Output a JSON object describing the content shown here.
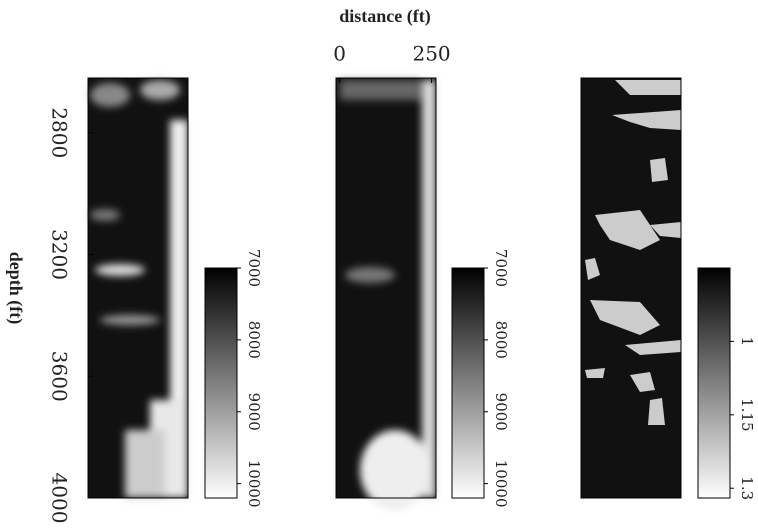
{
  "chart_data": {
    "type": "heatmap",
    "xlabel": "distance (ft)",
    "ylabel": "depth (ft)",
    "xlim": [
      -10,
      262
    ],
    "xticks": [
      0,
      250
    ],
    "ylim": [
      2620,
      4000
    ],
    "yticks": [
      2800,
      3200,
      3600,
      4000
    ],
    "colormap": [
      "#000000",
      "#ffffff"
    ],
    "panels": [
      {
        "clim": [
          7000,
          10200
        ],
        "cticks": [
          7000,
          8000,
          9000,
          10000
        ]
      },
      {
        "clim": [
          7000,
          10200
        ],
        "cticks": [
          7000,
          8000,
          9000,
          10000
        ]
      },
      {
        "clim": [
          0.85,
          1.32
        ],
        "cticks": [
          1,
          1.15,
          1.3
        ]
      }
    ]
  }
}
